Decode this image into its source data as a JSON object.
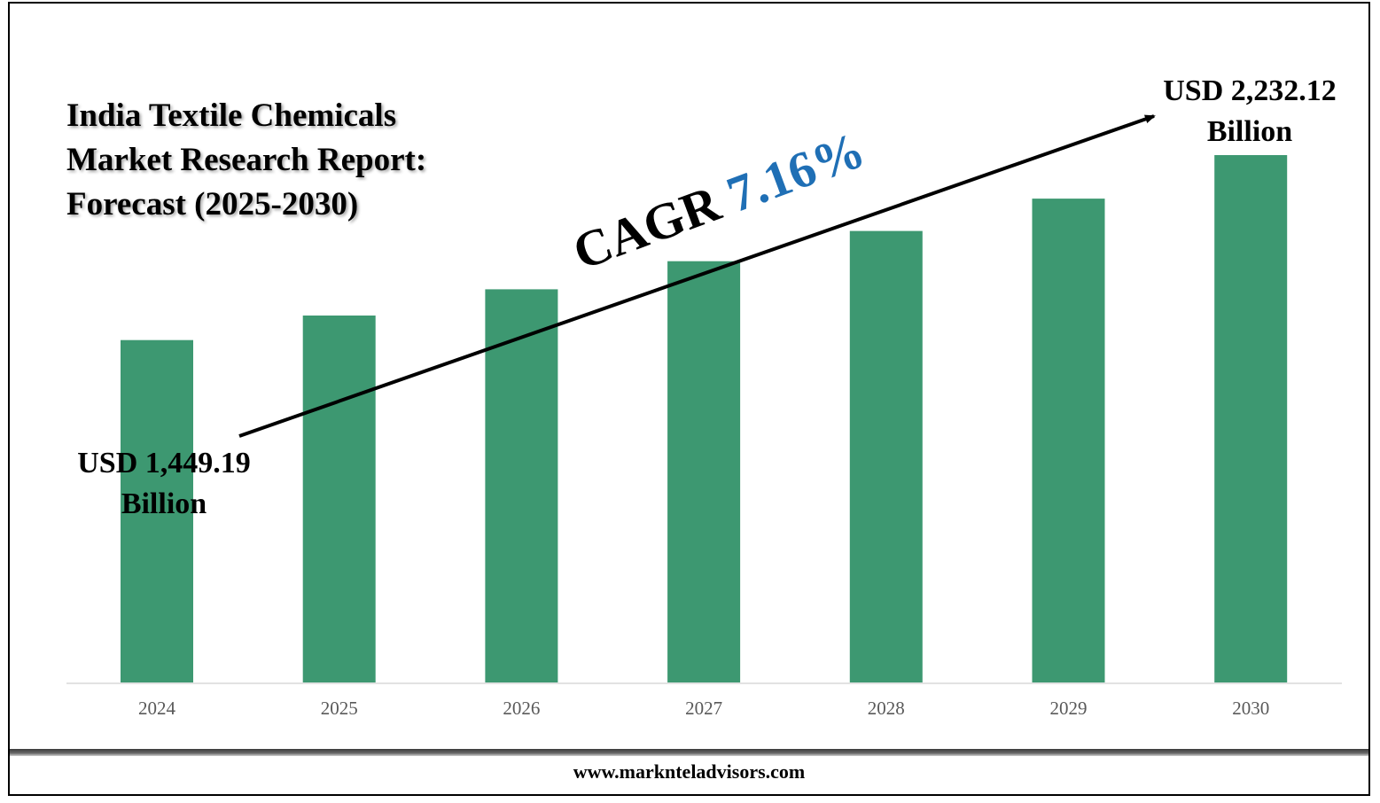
{
  "title_lines": [
    "India Textile Chemicals",
    "Market Research Report:",
    "Forecast (2025-2030)"
  ],
  "start_label": {
    "line1": "USD 1,449.19",
    "line2": "Billion"
  },
  "end_label": {
    "line1": "USD 2,232.12",
    "line2": "Billion"
  },
  "cagr": {
    "prefix": "CAGR",
    "value": "7.16%"
  },
  "footer": "www.marknteladvisors.com",
  "colors": {
    "bar": "#3d9871",
    "cagr_value": "#1f6fb5",
    "axis_line": "#d9d9d9",
    "tick_text": "#595959"
  },
  "chart_data": {
    "type": "bar",
    "title": "India Textile Chemicals Market Research Report: Forecast (2025-2030)",
    "categories": [
      "2024",
      "2025",
      "2026",
      "2027",
      "2028",
      "2029",
      "2030"
    ],
    "values": [
      1449.19,
      1553,
      1664,
      1783,
      1911,
      2048,
      2232.12
    ],
    "unit": "USD Billion",
    "xlabel": "",
    "ylabel": "",
    "grid": false,
    "legend": "none",
    "annotations": [
      "USD 1,449.19 Billion",
      "USD 2,232.12 Billion",
      "CAGR 7.16%"
    ]
  }
}
